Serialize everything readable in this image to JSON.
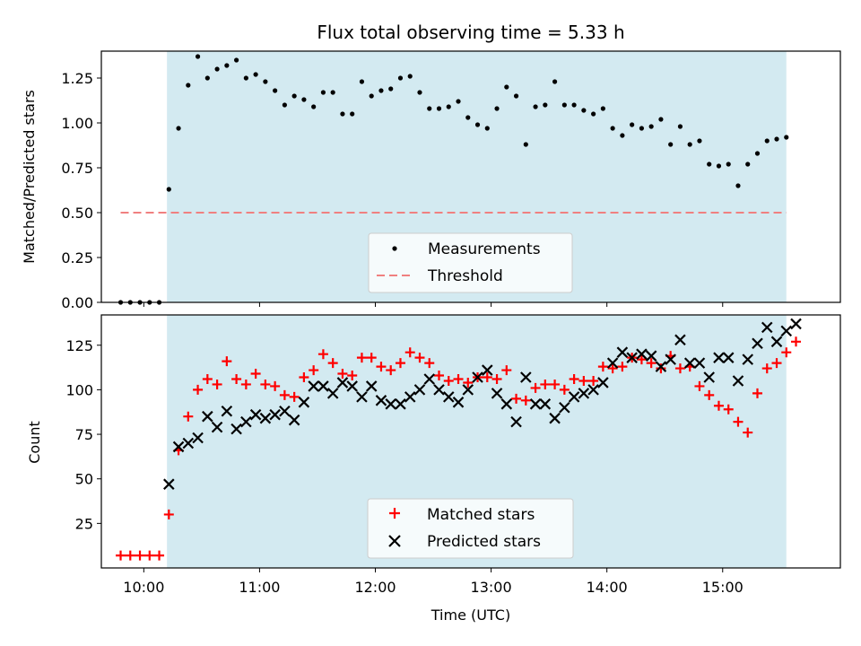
{
  "chart_data": [
    {
      "type": "scatter",
      "title": "Flux total observing time = 5.33 h",
      "xlabel": "",
      "ylabel": "Matched/Predicted stars",
      "ylim": [
        0,
        1.4
      ],
      "xlim": [
        "09:38",
        "16:01"
      ],
      "yticks": [
        "0.00",
        "0.25",
        "0.50",
        "0.75",
        "1.00",
        "1.25"
      ],
      "grid": false,
      "legend_position": "lower-center",
      "shaded_interval": {
        "start": "10:12",
        "end": "15:33",
        "color": "#d3eaf1"
      },
      "threshold": {
        "name": "Threshold",
        "value": 0.5,
        "x_start": "09:48",
        "x_end": "15:33",
        "color": "#f08080",
        "style": "dashed"
      },
      "series": [
        {
          "name": "Measurements",
          "color": "#000000",
          "marker": "dot",
          "points": [
            [
              "09:48",
              0.0
            ],
            [
              "09:53",
              0.0
            ],
            [
              "09:58",
              0.0
            ],
            [
              "10:03",
              0.0
            ],
            [
              "10:08",
              0.0
            ],
            [
              "10:13",
              0.63
            ],
            [
              "10:18",
              0.97
            ],
            [
              "10:23",
              1.21
            ],
            [
              "10:28",
              1.37
            ],
            [
              "10:33",
              1.25
            ],
            [
              "10:38",
              1.3
            ],
            [
              "10:43",
              1.32
            ],
            [
              "10:48",
              1.35
            ],
            [
              "10:53",
              1.25
            ],
            [
              "10:58",
              1.27
            ],
            [
              "11:03",
              1.23
            ],
            [
              "11:08",
              1.18
            ],
            [
              "11:13",
              1.1
            ],
            [
              "11:18",
              1.15
            ],
            [
              "11:23",
              1.13
            ],
            [
              "11:28",
              1.09
            ],
            [
              "11:33",
              1.17
            ],
            [
              "11:38",
              1.17
            ],
            [
              "11:43",
              1.05
            ],
            [
              "11:48",
              1.05
            ],
            [
              "11:53",
              1.23
            ],
            [
              "11:58",
              1.15
            ],
            [
              "12:03",
              1.18
            ],
            [
              "12:08",
              1.19
            ],
            [
              "12:13",
              1.25
            ],
            [
              "12:18",
              1.26
            ],
            [
              "12:23",
              1.17
            ],
            [
              "12:28",
              1.08
            ],
            [
              "12:33",
              1.08
            ],
            [
              "12:38",
              1.09
            ],
            [
              "12:43",
              1.12
            ],
            [
              "12:48",
              1.03
            ],
            [
              "12:53",
              0.99
            ],
            [
              "12:58",
              0.97
            ],
            [
              "13:03",
              1.08
            ],
            [
              "13:08",
              1.2
            ],
            [
              "13:13",
              1.15
            ],
            [
              "13:18",
              0.88
            ],
            [
              "13:23",
              1.09
            ],
            [
              "13:28",
              1.1
            ],
            [
              "13:33",
              1.23
            ],
            [
              "13:38",
              1.1
            ],
            [
              "13:43",
              1.1
            ],
            [
              "13:48",
              1.07
            ],
            [
              "13:53",
              1.05
            ],
            [
              "13:58",
              1.08
            ],
            [
              "14:03",
              0.97
            ],
            [
              "14:08",
              0.93
            ],
            [
              "14:13",
              0.99
            ],
            [
              "14:18",
              0.97
            ],
            [
              "14:23",
              0.98
            ],
            [
              "14:28",
              1.02
            ],
            [
              "14:33",
              0.88
            ],
            [
              "14:38",
              0.98
            ],
            [
              "14:43",
              0.88
            ],
            [
              "14:48",
              0.9
            ],
            [
              "14:53",
              0.77
            ],
            [
              "14:58",
              0.76
            ],
            [
              "15:03",
              0.77
            ],
            [
              "15:08",
              0.65
            ],
            [
              "15:13",
              0.77
            ],
            [
              "15:18",
              0.83
            ],
            [
              "15:23",
              0.9
            ],
            [
              "15:28",
              0.91
            ],
            [
              "15:33",
              0.92
            ]
          ]
        }
      ]
    },
    {
      "type": "scatter",
      "title": "",
      "xlabel": "Time (UTC)",
      "ylabel": "Count",
      "ylim": [
        0,
        142
      ],
      "xlim": [
        "09:38",
        "16:01"
      ],
      "xticks": [
        "10:00",
        "11:00",
        "12:00",
        "13:00",
        "14:00",
        "15:00"
      ],
      "yticks": [
        "25",
        "50",
        "75",
        "100",
        "125"
      ],
      "grid": false,
      "legend_position": "lower-center",
      "shaded_interval": {
        "start": "10:12",
        "end": "15:33",
        "color": "#d3eaf1"
      },
      "series": [
        {
          "name": "Matched stars",
          "color": "#ff0000",
          "marker": "plus",
          "points": [
            [
              "09:48",
              7
            ],
            [
              "09:53",
              7
            ],
            [
              "09:58",
              7
            ],
            [
              "10:03",
              7
            ],
            [
              "10:08",
              7
            ],
            [
              "10:13",
              30
            ],
            [
              "10:18",
              66
            ],
            [
              "10:23",
              85
            ],
            [
              "10:28",
              100
            ],
            [
              "10:33",
              106
            ],
            [
              "10:38",
              103
            ],
            [
              "10:43",
              116
            ],
            [
              "10:48",
              106
            ],
            [
              "10:53",
              103
            ],
            [
              "10:58",
              109
            ],
            [
              "11:03",
              103
            ],
            [
              "11:08",
              102
            ],
            [
              "11:13",
              97
            ],
            [
              "11:18",
              96
            ],
            [
              "11:23",
              107
            ],
            [
              "11:28",
              111
            ],
            [
              "11:33",
              120
            ],
            [
              "11:38",
              115
            ],
            [
              "11:43",
              109
            ],
            [
              "11:48",
              108
            ],
            [
              "11:53",
              118
            ],
            [
              "11:58",
              118
            ],
            [
              "12:03",
              113
            ],
            [
              "12:08",
              111
            ],
            [
              "12:13",
              115
            ],
            [
              "12:18",
              121
            ],
            [
              "12:23",
              118
            ],
            [
              "12:28",
              115
            ],
            [
              "12:33",
              108
            ],
            [
              "12:38",
              105
            ],
            [
              "12:43",
              106
            ],
            [
              "12:48",
              104
            ],
            [
              "12:53",
              107
            ],
            [
              "12:58",
              107
            ],
            [
              "13:03",
              106
            ],
            [
              "13:08",
              111
            ],
            [
              "13:13",
              95
            ],
            [
              "13:18",
              94
            ],
            [
              "13:23",
              101
            ],
            [
              "13:28",
              103
            ],
            [
              "13:33",
              103
            ],
            [
              "13:38",
              100
            ],
            [
              "13:43",
              106
            ],
            [
              "13:48",
              105
            ],
            [
              "13:53",
              105
            ],
            [
              "13:58",
              113
            ],
            [
              "14:03",
              112
            ],
            [
              "14:08",
              113
            ],
            [
              "14:13",
              118
            ],
            [
              "14:18",
              117
            ],
            [
              "14:23",
              115
            ],
            [
              "14:28",
              112
            ],
            [
              "14:33",
              119
            ],
            [
              "14:38",
              112
            ],
            [
              "14:43",
              113
            ],
            [
              "14:48",
              102
            ],
            [
              "14:53",
              97
            ],
            [
              "14:58",
              91
            ],
            [
              "15:03",
              89
            ],
            [
              "15:08",
              82
            ],
            [
              "15:13",
              76
            ],
            [
              "15:18",
              98
            ],
            [
              "15:23",
              112
            ],
            [
              "15:28",
              115
            ],
            [
              "15:33",
              121
            ],
            [
              "15:38",
              127
            ]
          ]
        },
        {
          "name": "Predicted stars",
          "color": "#000000",
          "marker": "x",
          "points": [
            [
              "10:13",
              47
            ],
            [
              "10:18",
              68
            ],
            [
              "10:23",
              70
            ],
            [
              "10:28",
              73
            ],
            [
              "10:33",
              85
            ],
            [
              "10:38",
              79
            ],
            [
              "10:43",
              88
            ],
            [
              "10:48",
              78
            ],
            [
              "10:53",
              82
            ],
            [
              "10:58",
              86
            ],
            [
              "11:03",
              84
            ],
            [
              "11:08",
              86
            ],
            [
              "11:13",
              88
            ],
            [
              "11:18",
              83
            ],
            [
              "11:23",
              93
            ],
            [
              "11:28",
              102
            ],
            [
              "11:33",
              102
            ],
            [
              "11:38",
              98
            ],
            [
              "11:43",
              104
            ],
            [
              "11:48",
              102
            ],
            [
              "11:53",
              96
            ],
            [
              "11:58",
              102
            ],
            [
              "12:03",
              94
            ],
            [
              "12:08",
              92
            ],
            [
              "12:13",
              92
            ],
            [
              "12:18",
              96
            ],
            [
              "12:23",
              100
            ],
            [
              "12:28",
              106
            ],
            [
              "12:33",
              100
            ],
            [
              "12:38",
              96
            ],
            [
              "12:43",
              93
            ],
            [
              "12:48",
              100
            ],
            [
              "12:53",
              107
            ],
            [
              "12:58",
              111
            ],
            [
              "13:03",
              98
            ],
            [
              "13:08",
              92
            ],
            [
              "13:13",
              82
            ],
            [
              "13:18",
              107
            ],
            [
              "13:23",
              92
            ],
            [
              "13:28",
              92
            ],
            [
              "13:33",
              84
            ],
            [
              "13:38",
              90
            ],
            [
              "13:43",
              96
            ],
            [
              "13:48",
              98
            ],
            [
              "13:53",
              100
            ],
            [
              "13:58",
              104
            ],
            [
              "14:03",
              115
            ],
            [
              "14:08",
              121
            ],
            [
              "14:13",
              118
            ],
            [
              "14:18",
              120
            ],
            [
              "14:23",
              119
            ],
            [
              "14:28",
              113
            ],
            [
              "14:33",
              117
            ],
            [
              "14:38",
              128
            ],
            [
              "14:43",
              115
            ],
            [
              "14:48",
              115
            ],
            [
              "14:53",
              107
            ],
            [
              "14:58",
              118
            ],
            [
              "15:03",
              118
            ],
            [
              "15:08",
              105
            ],
            [
              "15:13",
              117
            ],
            [
              "15:18",
              126
            ],
            [
              "15:23",
              135
            ],
            [
              "15:28",
              127
            ],
            [
              "15:33",
              133
            ],
            [
              "15:38",
              137
            ]
          ]
        }
      ]
    }
  ]
}
